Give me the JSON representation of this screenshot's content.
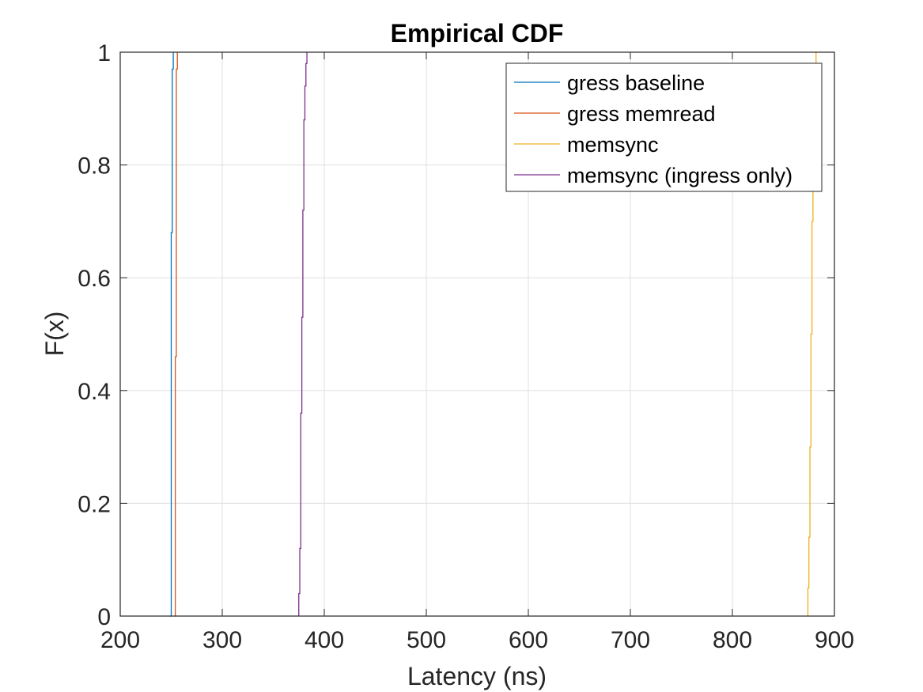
{
  "chart_data": {
    "type": "line",
    "title": "Empirical CDF",
    "xlabel": "Latency (ns)",
    "ylabel": "F(x)",
    "xlim": [
      200,
      900
    ],
    "ylim": [
      0,
      1
    ],
    "xticks": [
      200,
      300,
      400,
      500,
      600,
      700,
      800,
      900
    ],
    "xtick_labels": [
      "200",
      "300",
      "400",
      "500",
      "600",
      "700",
      "800",
      "900"
    ],
    "yticks": [
      0,
      0.2,
      0.4,
      0.6,
      0.8,
      1
    ],
    "ytick_labels": [
      "0",
      "0.2",
      "0.4",
      "0.6",
      "0.8",
      "1"
    ],
    "grid": true,
    "legend_position": "top-right",
    "series": [
      {
        "name": "gress baseline",
        "color": "#0072BD",
        "x": [
          249,
          250,
          250,
          251,
          251,
          252
        ],
        "y": [
          0,
          0.05,
          0.68,
          0.68,
          0.97,
          1
        ]
      },
      {
        "name": "gress memread",
        "color": "#D95319",
        "x": [
          253,
          254,
          254,
          255,
          255,
          256
        ],
        "y": [
          0,
          0.05,
          0.46,
          0.46,
          0.97,
          1
        ]
      },
      {
        "name": "memsync",
        "color": "#EDB120",
        "x": [
          873,
          874,
          875,
          876,
          877,
          878,
          879,
          880,
          881,
          882
        ],
        "y": [
          0,
          0.05,
          0.14,
          0.3,
          0.5,
          0.7,
          0.85,
          0.94,
          0.98,
          1
        ]
      },
      {
        "name": "memsync (ingress only)",
        "color": "#7E2F8E",
        "x": [
          375,
          375,
          376,
          377,
          378,
          379,
          380,
          381,
          382,
          383
        ],
        "y": [
          0,
          0.04,
          0.12,
          0.36,
          0.53,
          0.72,
          0.88,
          0.94,
          0.98,
          1
        ]
      }
    ]
  }
}
